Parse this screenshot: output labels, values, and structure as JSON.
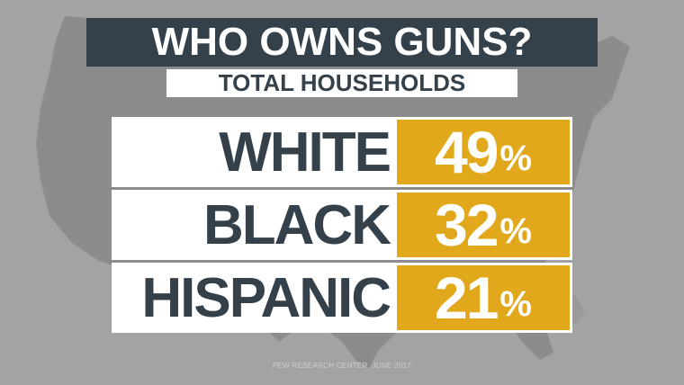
{
  "title": "WHO OWNS GUNS?",
  "subtitle": "TOTAL HOUSEHOLDS",
  "rows": [
    {
      "label": "WHITE",
      "value": "49",
      "unit": "%"
    },
    {
      "label": "BLACK",
      "value": "32",
      "unit": "%"
    },
    {
      "label": "HISPANIC",
      "value": "21",
      "unit": "%"
    }
  ],
  "source": "PEW RESEARCH CENTER, JUNE 2017",
  "colors": {
    "background": "#a3a3a3",
    "map": "#8c8c8c",
    "title_bg": "#34404a",
    "accent": "#e2a81b",
    "text_dark": "#34404a"
  }
}
